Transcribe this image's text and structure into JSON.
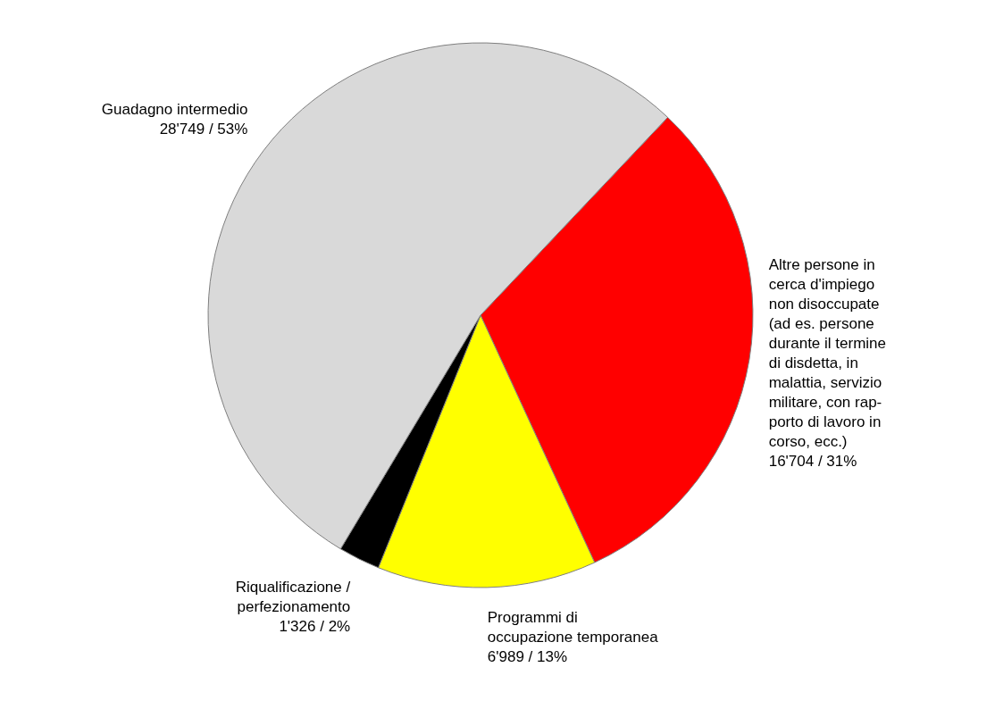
{
  "chart_data": {
    "type": "pie",
    "categories": [
      "Altre persone in\ncerca d'impiego\nnon disoccupate\n(ad es. persone\ndurante il termine\ndi disdetta, in\nmalattia, servizio\nmilitare, con rap-\nporto di lavoro in\ncorso, ecc.)",
      "Programmi di\noccupazione temporanea",
      "Riqualificazione /\nperfezionamento",
      "Guadagno intermedio"
    ],
    "values": [
      16704,
      6989,
      1326,
      28749
    ],
    "value_labels": [
      "16'704 / 31%",
      "6'989 / 13%",
      "1'326 / 2%",
      "28'749 / 53%"
    ],
    "colors": [
      "#ff0000",
      "#ffff00",
      "#000000",
      "#d9d9d9"
    ]
  }
}
